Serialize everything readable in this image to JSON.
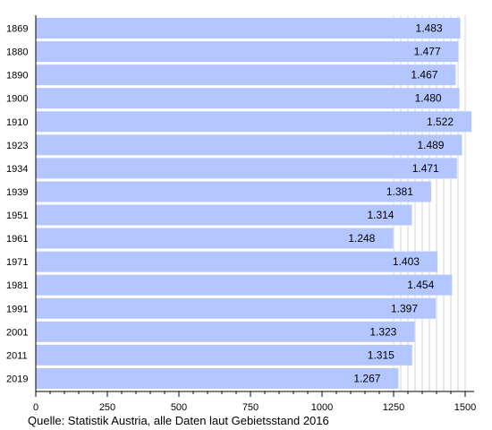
{
  "chart_data": {
    "type": "bar",
    "orientation": "horizontal",
    "categories": [
      "1869",
      "1880",
      "1890",
      "1900",
      "1910",
      "1923",
      "1934",
      "1939",
      "1951",
      "1961",
      "1971",
      "1981",
      "1991",
      "2001",
      "2011",
      "2019"
    ],
    "values": [
      1483,
      1477,
      1467,
      1480,
      1522,
      1489,
      1471,
      1381,
      1314,
      1248,
      1403,
      1454,
      1397,
      1323,
      1315,
      1267
    ],
    "value_labels": [
      "1.483",
      "1.477",
      "1.467",
      "1.480",
      "1.522",
      "1.489",
      "1.471",
      "1.381",
      "1.314",
      "1.248",
      "1.403",
      "1.454",
      "1.397",
      "1.323",
      "1.315",
      "1.267"
    ],
    "xlim": [
      0,
      1500
    ],
    "xticks": [
      0,
      250,
      500,
      750,
      1000,
      1250,
      1500
    ],
    "xtick_labels": [
      "0",
      "250",
      "500",
      "750",
      "1000",
      "1250",
      "1500"
    ],
    "grid": "vertical lines from 1250 to 1500",
    "colors": {
      "bar": "#b3c6ff",
      "axis": "#000000",
      "grid": "#cccccc"
    }
  },
  "source_note": "Quelle: Statistik Austria, alle Daten laut Gebietsstand 2016"
}
